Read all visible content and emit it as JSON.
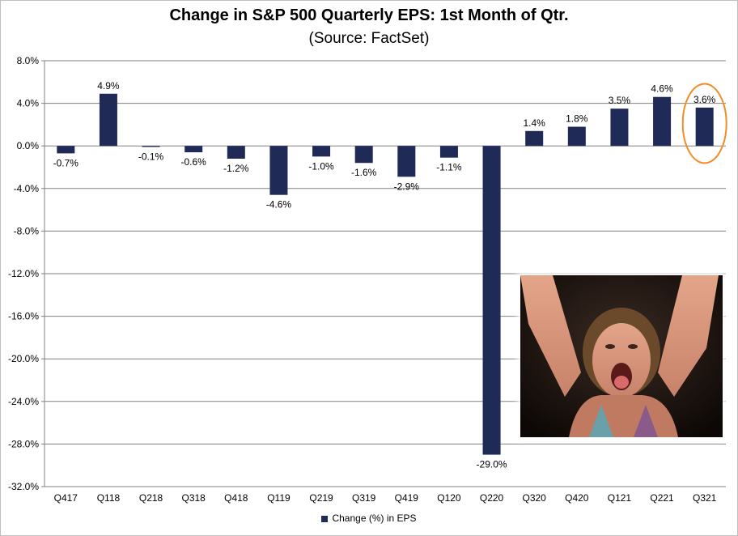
{
  "title": "Change in S&P 500 Quarterly EPS: 1st Month of Qtr.",
  "subtitle": "(Source: FactSet)",
  "legend_label": "Change (%) in EPS",
  "colors": {
    "bar": "#1f2a57",
    "grid": "#808080",
    "highlight": "#f28c28"
  },
  "chart_data": {
    "type": "bar",
    "categories": [
      "Q417",
      "Q118",
      "Q218",
      "Q318",
      "Q418",
      "Q119",
      "Q219",
      "Q319",
      "Q419",
      "Q120",
      "Q220",
      "Q320",
      "Q420",
      "Q121",
      "Q221",
      "Q321"
    ],
    "series": [
      {
        "name": "Change (%) in EPS",
        "values": [
          -0.7,
          4.9,
          -0.1,
          -0.6,
          -1.2,
          -4.6,
          -1.0,
          -1.6,
          -2.9,
          -1.1,
          -29.0,
          1.4,
          1.8,
          3.5,
          4.6,
          3.6
        ],
        "labels": [
          "-0.7%",
          "4.9%",
          "-0.1%",
          "-0.6%",
          "-1.2%",
          "-4.6%",
          "-1.0%",
          "-1.6%",
          "-2.9%",
          "-1.1%",
          "-29.0%",
          "1.4%",
          "1.8%",
          "3.5%",
          "4.6%",
          "3.6%"
        ]
      }
    ],
    "yticks": [
      "8.0%",
      "4.0%",
      "0.0%",
      "-4.0%",
      "-8.0%",
      "-12.0%",
      "-16.0%",
      "-20.0%",
      "-24.0%",
      "-28.0%",
      "-32.0%"
    ],
    "ytick_values": [
      8,
      4,
      0,
      -4,
      -8,
      -12,
      -16,
      -20,
      -24,
      -28,
      -32
    ],
    "ylim": [
      -32,
      8
    ],
    "grid": true,
    "legend_position": "bottom",
    "highlighted_category": "Q321",
    "inset_image": "photo of a cheering woman with raised arms"
  }
}
